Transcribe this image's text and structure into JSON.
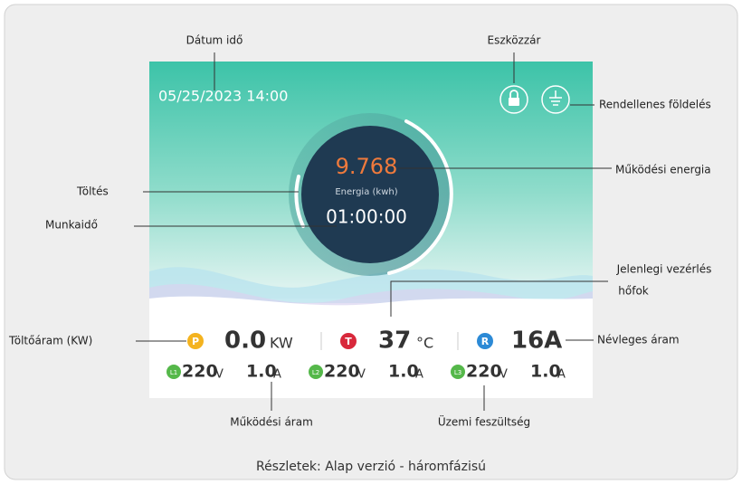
{
  "screen": {
    "datetime": "05/25/2023  14:00",
    "energy_value": "9.768",
    "energy_label": "Energia (kwh)",
    "work_time": "01:00:00",
    "power": {
      "badge": "P",
      "value": "0.0",
      "unit": "KW"
    },
    "temperature": {
      "badge": "T",
      "value": "37",
      "unit": "°C"
    },
    "rated": {
      "badge": "R",
      "value": "16A"
    },
    "phases": [
      {
        "badge": "L1",
        "voltage": "220",
        "voltage_unit": "V",
        "current": "1.0",
        "current_unit": "A"
      },
      {
        "badge": "L2",
        "voltage": "220",
        "voltage_unit": "V",
        "current": "1.0",
        "current_unit": "A"
      },
      {
        "badge": "L3",
        "voltage": "220",
        "voltage_unit": "V",
        "current": "1.0",
        "current_unit": "A"
      }
    ]
  },
  "callouts": {
    "datetime": "Dátum idő",
    "lock": "Eszközzár",
    "ground": "Rendellenes földelés",
    "energy": "Működési energia",
    "charging": "Töltés",
    "work_time": "Munkaidő",
    "temperature_1": "Jelenlegi vezérlés",
    "temperature_2": "hőfok",
    "power": "Töltőáram (KW)",
    "rated": "Névleges áram",
    "current": "Működési áram",
    "voltage": "Üzemi feszültség"
  },
  "caption": "Részletek: Alap verzió - háromfázisú"
}
